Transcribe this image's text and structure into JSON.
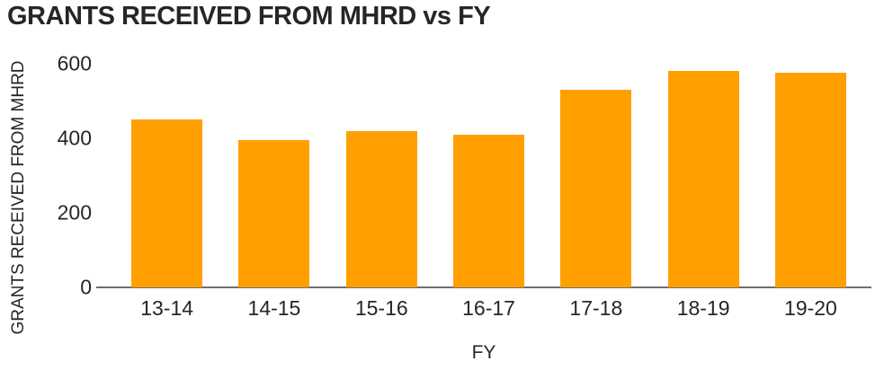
{
  "chart": {
    "title": "GRANTS RECEIVED FROM MHRD vs FY",
    "x_axis_label": "FY",
    "y_axis_label": "GRANTS RECEIVED FROM MHRD"
  },
  "chart_data": {
    "type": "bar",
    "title": "GRANTS RECEIVED FROM MHRD vs FY",
    "xlabel": "FY",
    "ylabel": "GRANTS RECEIVED FROM MHRD",
    "categories": [
      "13-14",
      "14-15",
      "15-16",
      "16-17",
      "17-18",
      "18-19",
      "19-20"
    ],
    "values": [
      450,
      395,
      420,
      410,
      530,
      580,
      575
    ],
    "ylim": [
      0,
      600
    ],
    "yticks": [
      0,
      200,
      400,
      600
    ],
    "grid": false,
    "legend_position": "none",
    "bar_color": "#FFA000",
    "axis_line_color": "#6e6e6e",
    "text_color": "#262626"
  }
}
